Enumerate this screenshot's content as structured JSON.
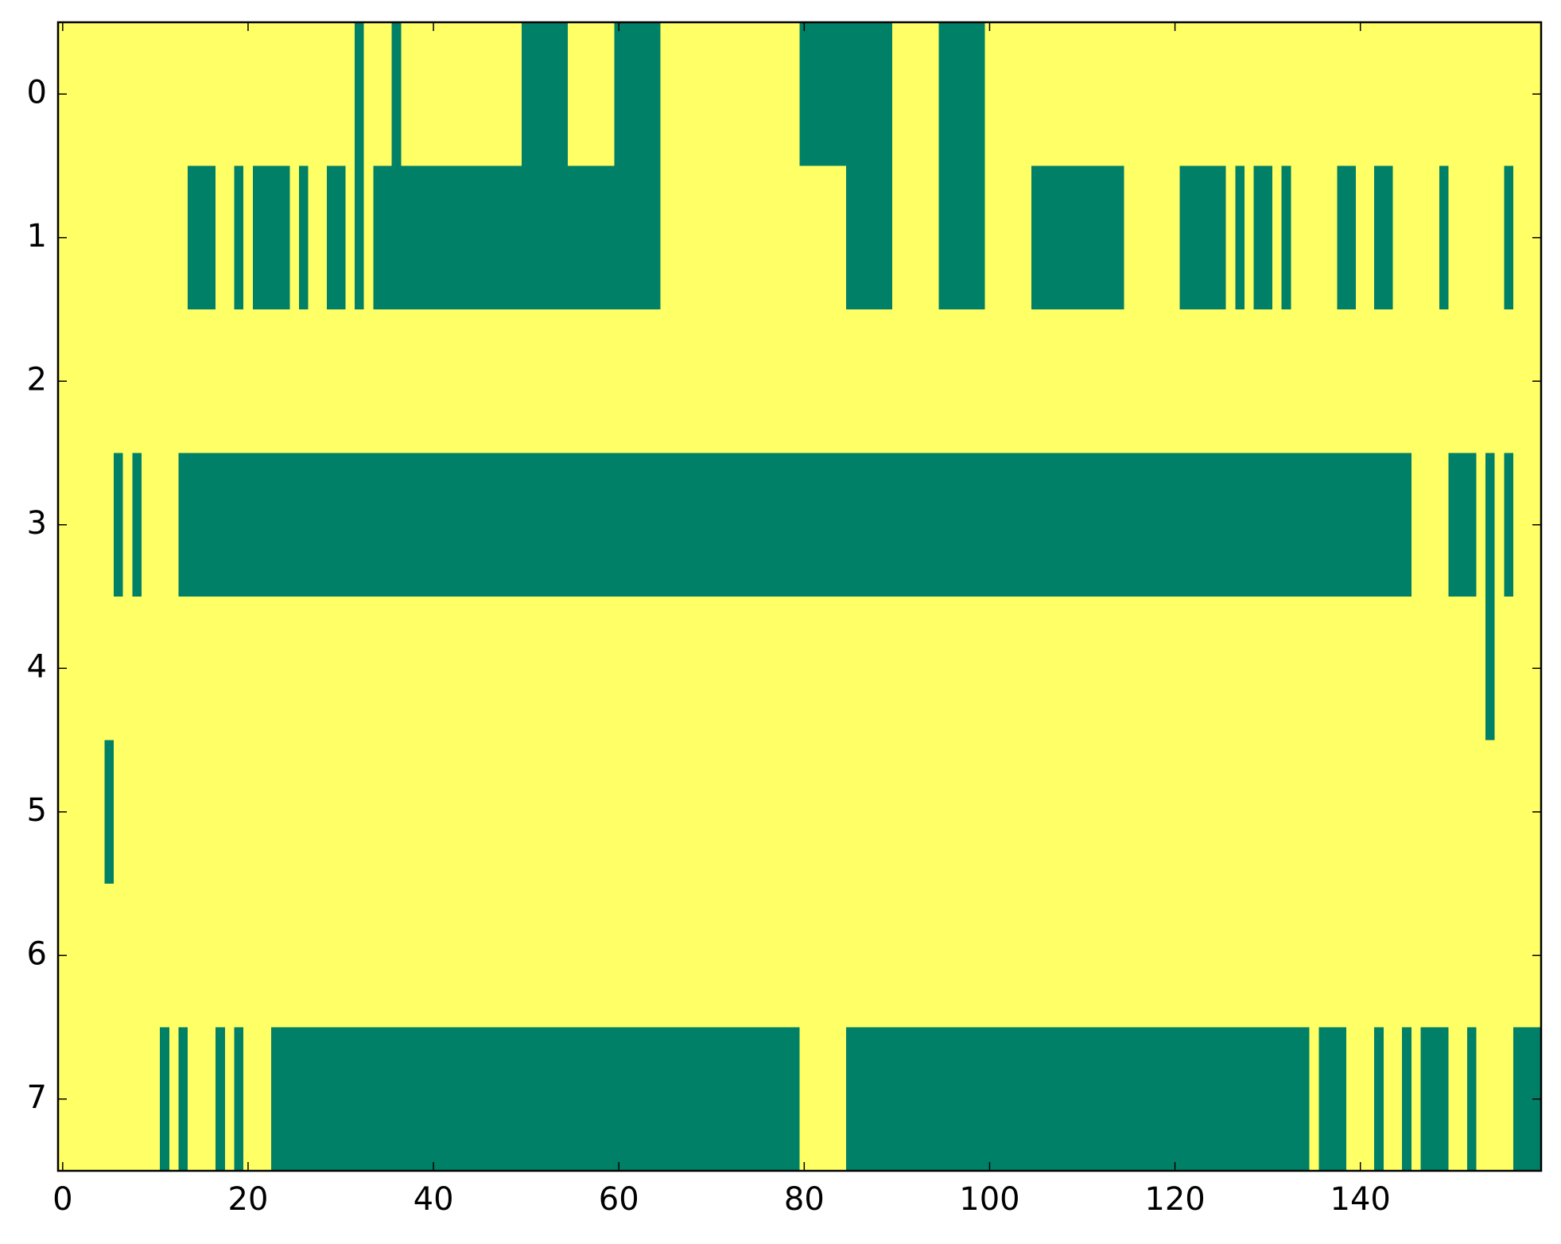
{
  "chart_data": {
    "type": "heatmap",
    "xlim": [
      -0.5,
      159.5
    ],
    "ylim": [
      7.5,
      -0.5
    ],
    "xticks": [
      0,
      20,
      40,
      60,
      80,
      100,
      120,
      140
    ],
    "yticks": [
      0,
      1,
      2,
      3,
      4,
      5,
      6,
      7
    ],
    "colors": [
      "#008066",
      "#ffff66"
    ],
    "z": [
      [
        1,
        1,
        1,
        1,
        1,
        1,
        1,
        1,
        1,
        1,
        1,
        1,
        1,
        1,
        1,
        1,
        1,
        1,
        1,
        1,
        1,
        1,
        1,
        1,
        1,
        1,
        1,
        1,
        1,
        1,
        1,
        1,
        0,
        1,
        1,
        1,
        0,
        1,
        1,
        1,
        1,
        1,
        1,
        1,
        1,
        1,
        1,
        1,
        1,
        1,
        0,
        0,
        0,
        0,
        0,
        1,
        1,
        1,
        1,
        1,
        0,
        0,
        0,
        0,
        0,
        1,
        1,
        1,
        1,
        1,
        1,
        1,
        1,
        1,
        1,
        1,
        1,
        1,
        1,
        1,
        0,
        0,
        0,
        0,
        0,
        0,
        0,
        0,
        0,
        0,
        1,
        1,
        1,
        1,
        1,
        0,
        0,
        0,
        0,
        0,
        1,
        1,
        1,
        1,
        1,
        1,
        1,
        1,
        1,
        1,
        1,
        1,
        1,
        1,
        1,
        1,
        1,
        1,
        1,
        1,
        1,
        1,
        1,
        1,
        1,
        1,
        1,
        1,
        1,
        1,
        1,
        1,
        1,
        1,
        1,
        1,
        1,
        1,
        1,
        1,
        1,
        1,
        1,
        1,
        1,
        1,
        1,
        1,
        1,
        1,
        1,
        1,
        1,
        1,
        1,
        1,
        1,
        1,
        1,
        1
      ],
      [
        1,
        1,
        1,
        1,
        1,
        1,
        1,
        1,
        1,
        1,
        1,
        1,
        1,
        1,
        0,
        0,
        0,
        1,
        1,
        0,
        1,
        0,
        0,
        0,
        0,
        1,
        0,
        1,
        1,
        0,
        0,
        1,
        0,
        1,
        0,
        0,
        0,
        0,
        0,
        0,
        0,
        0,
        0,
        0,
        0,
        0,
        0,
        0,
        0,
        0,
        0,
        0,
        0,
        0,
        0,
        0,
        0,
        0,
        0,
        0,
        0,
        0,
        0,
        0,
        0,
        1,
        1,
        1,
        1,
        1,
        1,
        1,
        1,
        1,
        1,
        1,
        1,
        1,
        1,
        1,
        1,
        1,
        1,
        1,
        1,
        0,
        0,
        0,
        0,
        0,
        1,
        1,
        1,
        1,
        1,
        0,
        0,
        0,
        0,
        0,
        1,
        1,
        1,
        1,
        1,
        0,
        0,
        0,
        0,
        0,
        0,
        0,
        0,
        0,
        0,
        1,
        1,
        1,
        1,
        1,
        1,
        0,
        0,
        0,
        0,
        0,
        1,
        0,
        1,
        0,
        0,
        1,
        0,
        1,
        1,
        1,
        1,
        1,
        0,
        0,
        1,
        1,
        0,
        0,
        1,
        1,
        1,
        1,
        1,
        0,
        1,
        1,
        1,
        1,
        1,
        1,
        0,
        1,
        1,
        1
      ],
      [
        1,
        1,
        1,
        1,
        1,
        1,
        1,
        1,
        1,
        1,
        1,
        1,
        1,
        1,
        1,
        1,
        1,
        1,
        1,
        1,
        1,
        1,
        1,
        1,
        1,
        1,
        1,
        1,
        1,
        1,
        1,
        1,
        1,
        1,
        1,
        1,
        1,
        1,
        1,
        1,
        1,
        1,
        1,
        1,
        1,
        1,
        1,
        1,
        1,
        1,
        1,
        1,
        1,
        1,
        1,
        1,
        1,
        1,
        1,
        1,
        1,
        1,
        1,
        1,
        1,
        1,
        1,
        1,
        1,
        1,
        1,
        1,
        1,
        1,
        1,
        1,
        1,
        1,
        1,
        1,
        1,
        1,
        1,
        1,
        1,
        1,
        1,
        1,
        1,
        1,
        1,
        1,
        1,
        1,
        1,
        1,
        1,
        1,
        1,
        1,
        1,
        1,
        1,
        1,
        1,
        1,
        1,
        1,
        1,
        1,
        1,
        1,
        1,
        1,
        1,
        1,
        1,
        1,
        1,
        1,
        1,
        1,
        1,
        1,
        1,
        1,
        1,
        1,
        1,
        1,
        1,
        1,
        1,
        1,
        1,
        1,
        1,
        1,
        1,
        1,
        1,
        1,
        1,
        1,
        1,
        1,
        1,
        1,
        1,
        1,
        1,
        1,
        1,
        1,
        1,
        1,
        1,
        1,
        1,
        1
      ],
      [
        1,
        1,
        1,
        1,
        1,
        1,
        0,
        1,
        0,
        1,
        1,
        1,
        1,
        0,
        0,
        0,
        0,
        0,
        0,
        0,
        0,
        0,
        0,
        0,
        0,
        0,
        0,
        0,
        0,
        0,
        0,
        0,
        0,
        0,
        0,
        0,
        0,
        0,
        0,
        0,
        0,
        0,
        0,
        0,
        0,
        0,
        0,
        0,
        0,
        0,
        0,
        0,
        0,
        0,
        0,
        0,
        0,
        0,
        0,
        0,
        0,
        0,
        0,
        0,
        0,
        0,
        0,
        0,
        0,
        0,
        0,
        0,
        0,
        0,
        0,
        0,
        0,
        0,
        0,
        0,
        0,
        0,
        0,
        0,
        0,
        0,
        0,
        0,
        0,
        0,
        0,
        0,
        0,
        0,
        0,
        0,
        0,
        0,
        0,
        0,
        0,
        0,
        0,
        0,
        0,
        0,
        0,
        0,
        0,
        0,
        0,
        0,
        0,
        0,
        0,
        0,
        0,
        0,
        0,
        0,
        0,
        0,
        0,
        0,
        0,
        0,
        0,
        0,
        0,
        0,
        0,
        0,
        0,
        0,
        0,
        0,
        0,
        0,
        0,
        0,
        0,
        0,
        0,
        0,
        0,
        0,
        1,
        1,
        1,
        1,
        0,
        0,
        0,
        1,
        0,
        1,
        0,
        1,
        1,
        1
      ],
      [
        1,
        1,
        1,
        1,
        1,
        1,
        1,
        1,
        1,
        1,
        1,
        1,
        1,
        1,
        1,
        1,
        1,
        1,
        1,
        1,
        1,
        1,
        1,
        1,
        1,
        1,
        1,
        1,
        1,
        1,
        1,
        1,
        1,
        1,
        1,
        1,
        1,
        1,
        1,
        1,
        1,
        1,
        1,
        1,
        1,
        1,
        1,
        1,
        1,
        1,
        1,
        1,
        1,
        1,
        1,
        1,
        1,
        1,
        1,
        1,
        1,
        1,
        1,
        1,
        1,
        1,
        1,
        1,
        1,
        1,
        1,
        1,
        1,
        1,
        1,
        1,
        1,
        1,
        1,
        1,
        1,
        1,
        1,
        1,
        1,
        1,
        1,
        1,
        1,
        1,
        1,
        1,
        1,
        1,
        1,
        1,
        1,
        1,
        1,
        1,
        1,
        1,
        1,
        1,
        1,
        1,
        1,
        1,
        1,
        1,
        1,
        1,
        1,
        1,
        1,
        1,
        1,
        1,
        1,
        1,
        1,
        1,
        1,
        1,
        1,
        1,
        1,
        1,
        1,
        1,
        1,
        1,
        1,
        1,
        1,
        1,
        1,
        1,
        1,
        1,
        1,
        1,
        1,
        1,
        1,
        1,
        1,
        1,
        1,
        1,
        1,
        1,
        1,
        1,
        0,
        1,
        1,
        1,
        1,
        1
      ],
      [
        1,
        1,
        1,
        1,
        1,
        0,
        1,
        1,
        1,
        1,
        1,
        1,
        1,
        1,
        1,
        1,
        1,
        1,
        1,
        1,
        1,
        1,
        1,
        1,
        1,
        1,
        1,
        1,
        1,
        1,
        1,
        1,
        1,
        1,
        1,
        1,
        1,
        1,
        1,
        1,
        1,
        1,
        1,
        1,
        1,
        1,
        1,
        1,
        1,
        1,
        1,
        1,
        1,
        1,
        1,
        1,
        1,
        1,
        1,
        1,
        1,
        1,
        1,
        1,
        1,
        1,
        1,
        1,
        1,
        1,
        1,
        1,
        1,
        1,
        1,
        1,
        1,
        1,
        1,
        1,
        1,
        1,
        1,
        1,
        1,
        1,
        1,
        1,
        1,
        1,
        1,
        1,
        1,
        1,
        1,
        1,
        1,
        1,
        1,
        1,
        1,
        1,
        1,
        1,
        1,
        1,
        1,
        1,
        1,
        1,
        1,
        1,
        1,
        1,
        1,
        1,
        1,
        1,
        1,
        1,
        1,
        1,
        1,
        1,
        1,
        1,
        1,
        1,
        1,
        1,
        1,
        1,
        1,
        1,
        1,
        1,
        1,
        1,
        1,
        1,
        1,
        1,
        1,
        1,
        1,
        1,
        1,
        1,
        1,
        1,
        1,
        1,
        1,
        1,
        1,
        1,
        1,
        1,
        1,
        1
      ],
      [
        1,
        1,
        1,
        1,
        1,
        1,
        1,
        1,
        1,
        1,
        1,
        1,
        1,
        1,
        1,
        1,
        1,
        1,
        1,
        1,
        1,
        1,
        1,
        1,
        1,
        1,
        1,
        1,
        1,
        1,
        1,
        1,
        1,
        1,
        1,
        1,
        1,
        1,
        1,
        1,
        1,
        1,
        1,
        1,
        1,
        1,
        1,
        1,
        1,
        1,
        1,
        1,
        1,
        1,
        1,
        1,
        1,
        1,
        1,
        1,
        1,
        1,
        1,
        1,
        1,
        1,
        1,
        1,
        1,
        1,
        1,
        1,
        1,
        1,
        1,
        1,
        1,
        1,
        1,
        1,
        1,
        1,
        1,
        1,
        1,
        1,
        1,
        1,
        1,
        1,
        1,
        1,
        1,
        1,
        1,
        1,
        1,
        1,
        1,
        1,
        1,
        1,
        1,
        1,
        1,
        1,
        1,
        1,
        1,
        1,
        1,
        1,
        1,
        1,
        1,
        1,
        1,
        1,
        1,
        1,
        1,
        1,
        1,
        1,
        1,
        1,
        1,
        1,
        1,
        1,
        1,
        1,
        1,
        1,
        1,
        1,
        1,
        1,
        1,
        1,
        1,
        1,
        1,
        1,
        1,
        1,
        1,
        1,
        1,
        1,
        1,
        1,
        1,
        1,
        1,
        1,
        1,
        1,
        1,
        1
      ],
      [
        1,
        1,
        1,
        1,
        1,
        1,
        1,
        1,
        1,
        1,
        1,
        0,
        1,
        0,
        1,
        1,
        1,
        0,
        1,
        0,
        1,
        1,
        1,
        0,
        0,
        0,
        0,
        0,
        0,
        0,
        0,
        0,
        0,
        0,
        0,
        0,
        0,
        0,
        0,
        0,
        0,
        0,
        0,
        0,
        0,
        0,
        0,
        0,
        0,
        0,
        0,
        0,
        0,
        0,
        0,
        0,
        0,
        0,
        0,
        0,
        0,
        0,
        0,
        0,
        0,
        0,
        0,
        0,
        0,
        0,
        0,
        0,
        0,
        0,
        0,
        0,
        0,
        0,
        0,
        0,
        1,
        1,
        1,
        1,
        1,
        0,
        0,
        0,
        0,
        0,
        0,
        0,
        0,
        0,
        0,
        0,
        0,
        0,
        0,
        0,
        0,
        0,
        0,
        0,
        0,
        0,
        0,
        0,
        0,
        0,
        0,
        0,
        0,
        0,
        0,
        0,
        0,
        0,
        0,
        0,
        0,
        0,
        0,
        0,
        0,
        0,
        0,
        0,
        0,
        0,
        0,
        0,
        0,
        0,
        0,
        1,
        0,
        0,
        0,
        1,
        1,
        1,
        0,
        1,
        1,
        0,
        1,
        0,
        0,
        0,
        1,
        1,
        0,
        1,
        1,
        1,
        1,
        0,
        0,
        0
      ]
    ]
  }
}
